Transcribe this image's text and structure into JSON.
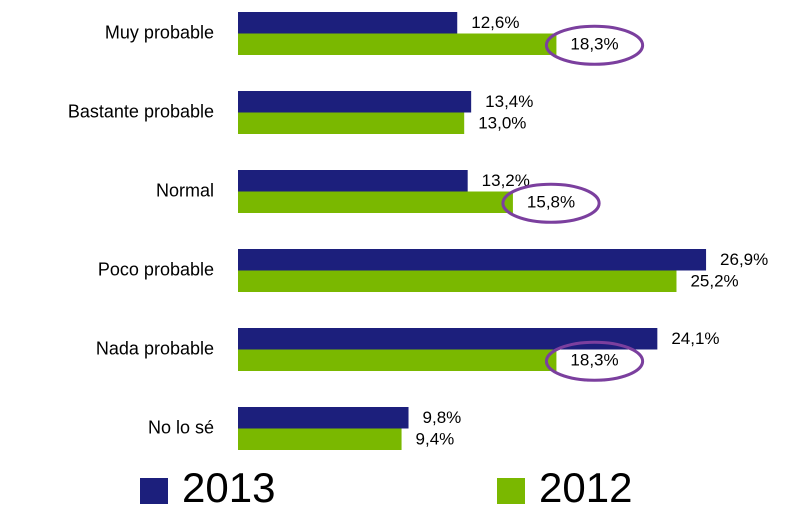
{
  "chart_data": {
    "type": "hbar",
    "categories": [
      "Muy probable",
      "Bastante probable",
      "Normal",
      "Poco probable",
      "Nada probable",
      "No lo sé"
    ],
    "series": [
      {
        "name": "2013",
        "color": "#1c1f7c",
        "values": [
          12.6,
          13.4,
          13.2,
          26.9,
          24.1,
          9.8
        ],
        "value_labels": [
          "12,6%",
          "13,4%",
          "13,2%",
          "26,9%",
          "24,1%",
          "9,8%"
        ]
      },
      {
        "name": "2012",
        "color": "#7ab800",
        "values": [
          18.3,
          13.0,
          15.8,
          25.2,
          18.3,
          9.4
        ],
        "value_labels": [
          "18,3%",
          "13,0%",
          "15,8%",
          "25,2%",
          "18,3%",
          "9,4%"
        ],
        "circled": [
          true,
          false,
          true,
          false,
          true,
          false
        ],
        "circle_color": "#7b3f9e"
      }
    ],
    "legend": "bottom"
  }
}
